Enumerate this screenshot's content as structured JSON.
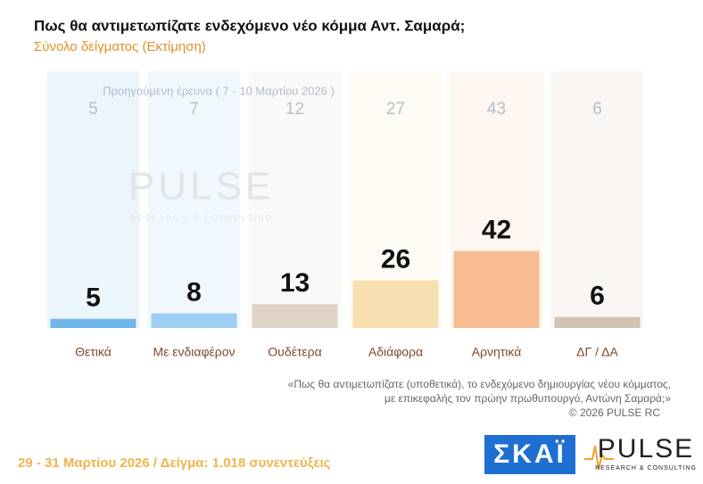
{
  "chart_data": {
    "type": "bar",
    "title": "Πως θα αντιμετωπίζατε ενδεχόμενο νέο κόμμα Αντ. Σαμαρά;",
    "subtitle": "Σύνολο δείγματος  (Εκτίμηση)",
    "categories": [
      "Θετικά",
      "Με ενδιαφέρον",
      "Ουδέτερα",
      "Αδιάφορα",
      "Αρνητικά",
      "ΔΓ / ΔΑ"
    ],
    "values": [
      5,
      8,
      13,
      26,
      42,
      6
    ],
    "colors": [
      "#5aaae6",
      "#8ec5ef",
      "#d9cbbd",
      "#f4dba3",
      "#f3b380",
      "#cbb8a4"
    ],
    "previous": {
      "label": "Προηγούμενη έρευνα ( 7 - 10 Μαρτίου 2026 )",
      "values": [
        5,
        7,
        12,
        27,
        43,
        6
      ]
    },
    "ylim": [
      0,
      140
    ]
  },
  "note": [
    "«Πως θα αντιμετωπίζατε (υποθετικά), το ενδεχόμενο δημιουργίας νέου κόμματος,",
    "με επικεφαλής τον πρώην πρωθυπουργό, Αντώνη Σαμαρά;»"
  ],
  "copyright": "©  2026  PULSE RC",
  "footer": "29 - 31  Μαρτίου 2026  /  Δείγμα:  1.018 συνεντεύξεις",
  "watermark": {
    "name": "PULSE",
    "sub": "RESEARCH & CONSULTING"
  },
  "logos": {
    "skai": "ΣΚΑΪ",
    "pulse": "PULSE",
    "pulse_sub": "RESEARCH & CONSULTING"
  }
}
